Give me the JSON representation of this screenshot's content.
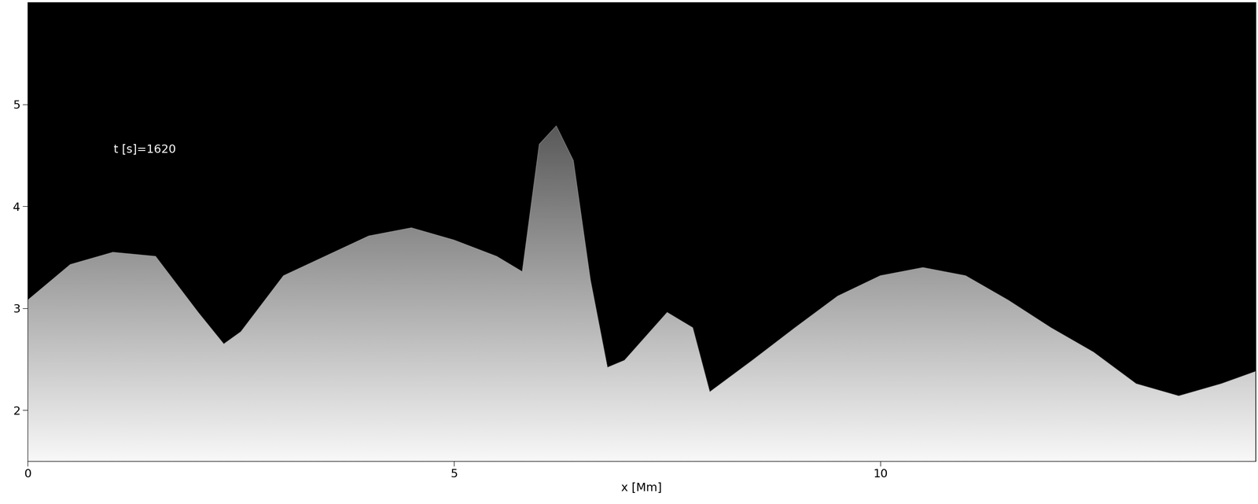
{
  "chart_data": {
    "type": "area",
    "xlabel": "x [Mm]",
    "annotation": "t [s]=1620",
    "x": [
      0,
      0.5,
      1.0,
      1.5,
      2.0,
      2.3,
      2.5,
      3.0,
      4.0,
      4.5,
      5.0,
      5.5,
      5.8,
      6.0,
      6.2,
      6.4,
      6.6,
      6.8,
      7.0,
      7.5,
      7.8,
      8.0,
      8.5,
      9.0,
      9.5,
      10.0,
      10.5,
      11.0,
      11.5,
      12.0,
      12.5,
      13.0,
      13.5,
      14.0,
      14.4
    ],
    "values": [
      3.08,
      3.43,
      3.55,
      3.51,
      2.96,
      2.65,
      2.77,
      3.32,
      3.71,
      3.79,
      3.67,
      3.51,
      3.36,
      4.61,
      4.79,
      4.45,
      3.28,
      2.42,
      2.49,
      2.96,
      2.81,
      2.18,
      2.49,
      2.81,
      3.12,
      3.32,
      3.4,
      3.32,
      3.08,
      2.81,
      2.57,
      2.26,
      2.14,
      2.26,
      2.38
    ],
    "color": "#b4b4b4",
    "xlim": [
      0,
      14.4
    ],
    "ylim": [
      1.5,
      6.0
    ],
    "xticks": [
      0,
      5,
      10
    ],
    "yticks": [
      2,
      3,
      4,
      5
    ],
    "grid": false
  }
}
